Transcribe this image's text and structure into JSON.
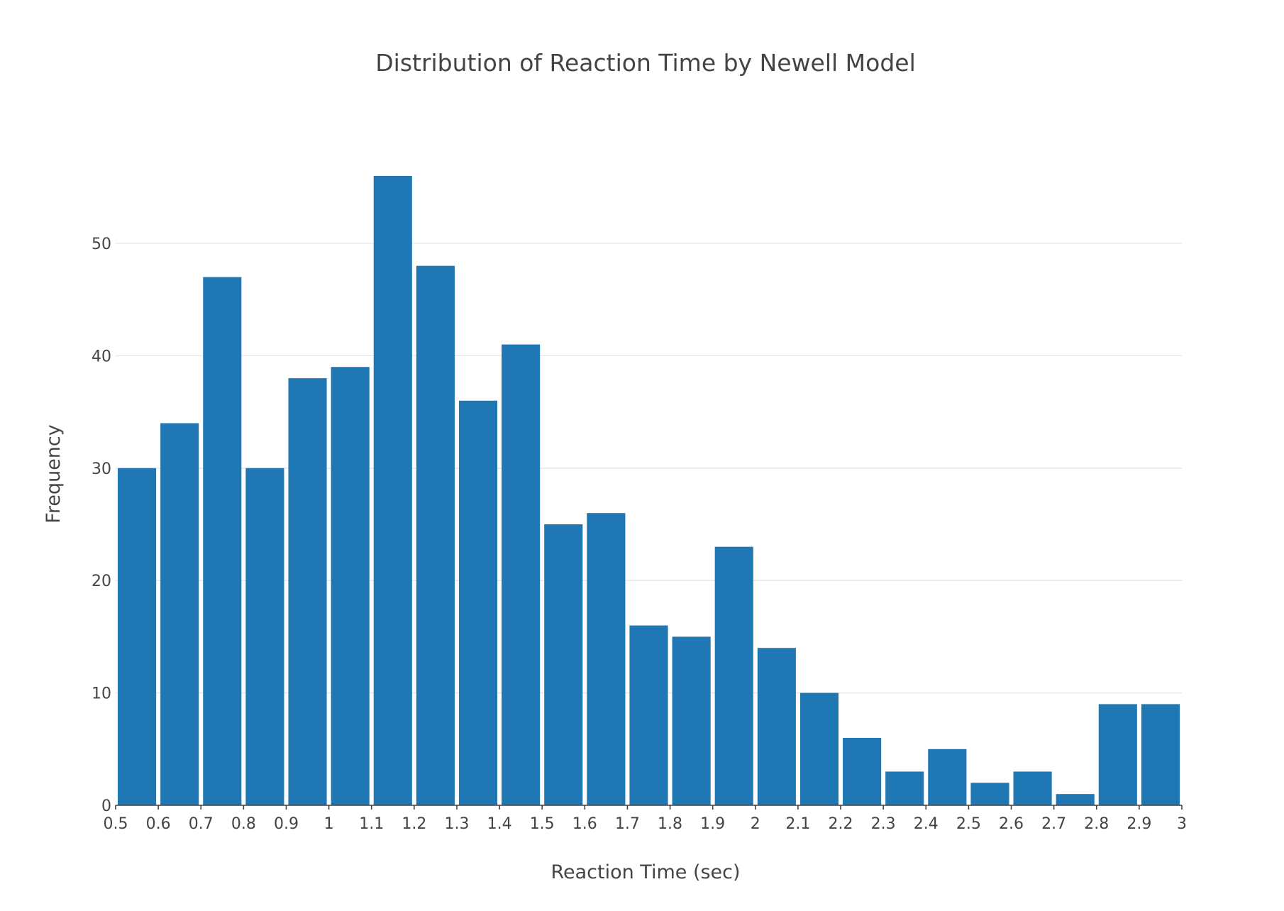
{
  "chart_data": {
    "type": "bar",
    "title": "Distribution of Reaction Time by Newell Model",
    "xlabel": "Reaction Time (sec)",
    "ylabel": "Frequency",
    "bin_edges": [
      0.5,
      0.6,
      0.7,
      0.8,
      0.9,
      1.0,
      1.1,
      1.2,
      1.3,
      1.4,
      1.5,
      1.6,
      1.7,
      1.8,
      1.9,
      2.0,
      2.1,
      2.2,
      2.3,
      2.4,
      2.5,
      2.6,
      2.7,
      2.8,
      2.9,
      3.0
    ],
    "values": [
      30,
      34,
      47,
      30,
      38,
      39,
      56,
      48,
      36,
      41,
      25,
      26,
      16,
      15,
      23,
      14,
      10,
      6,
      3,
      5,
      2,
      3,
      1,
      9,
      9
    ],
    "xlim": [
      0.5,
      3.0
    ],
    "ylim": [
      0,
      60
    ],
    "x_ticks": [
      "0.5",
      "0.6",
      "0.7",
      "0.8",
      "0.9",
      "1",
      "1.1",
      "1.2",
      "1.3",
      "1.4",
      "1.5",
      "1.6",
      "1.7",
      "1.8",
      "1.9",
      "2",
      "2.1",
      "2.2",
      "2.3",
      "2.4",
      "2.5",
      "2.6",
      "2.7",
      "2.8",
      "2.9",
      "3"
    ],
    "y_ticks": [
      "0",
      "10",
      "20",
      "30",
      "40",
      "50"
    ],
    "grid": true,
    "legend": "none",
    "bar_color": "#1f77b4"
  }
}
